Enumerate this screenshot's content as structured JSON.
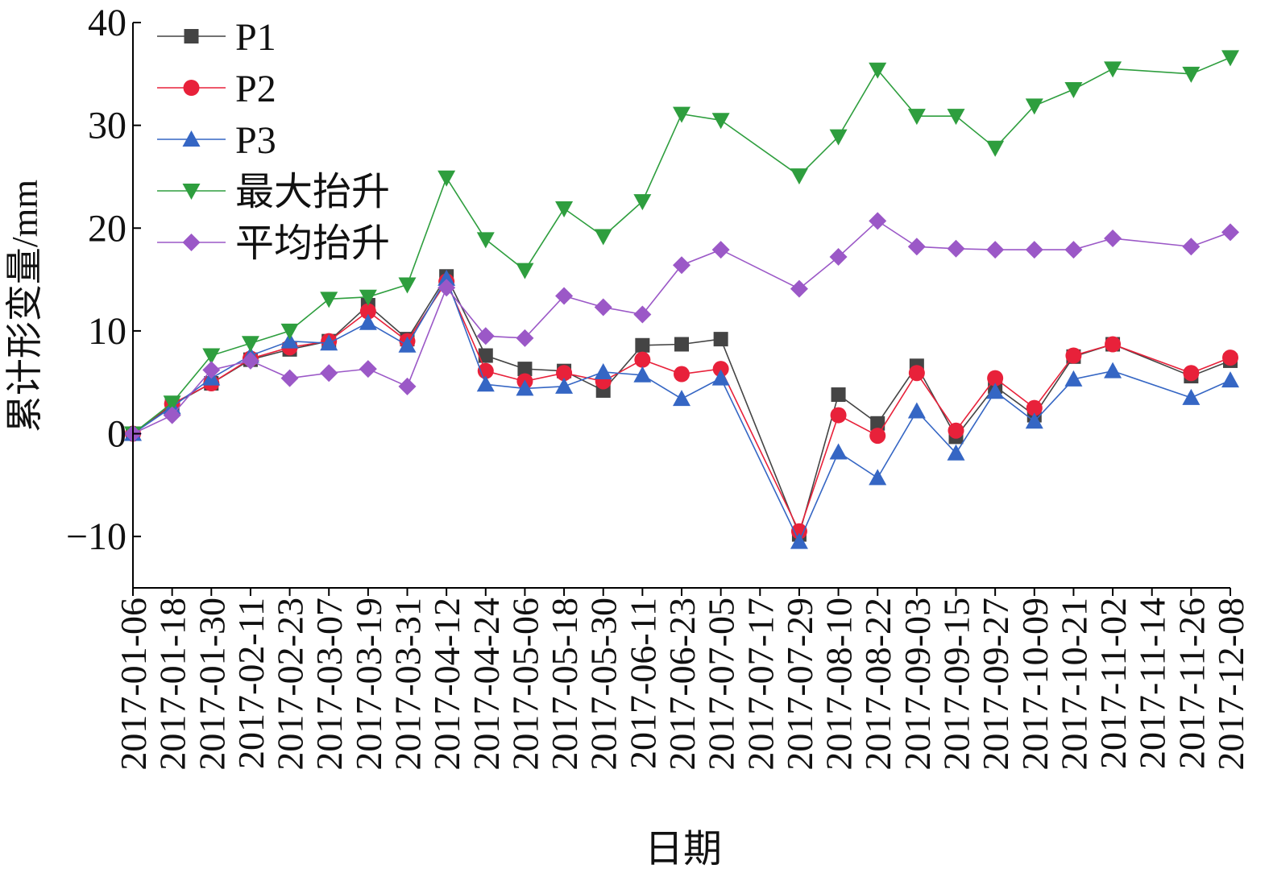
{
  "chart_data": {
    "type": "line",
    "xlabel": "日期",
    "ylabel": "累计形变量/mm",
    "ylim": [
      -15,
      40
    ],
    "yticks": [
      -10,
      0,
      10,
      20,
      30,
      40
    ],
    "ytick_labels": [
      "−10",
      "0",
      "10",
      "20",
      "30",
      "40"
    ],
    "x": [
      "2017-01-06",
      "2017-01-18",
      "2017-01-30",
      "2017-02-11",
      "2017-02-23",
      "2017-03-07",
      "2017-03-19",
      "2017-03-31",
      "2017-04-12",
      "2017-04-24",
      "2017-05-06",
      "2017-05-18",
      "2017-05-30",
      "2017-06-11",
      "2017-06-23",
      "2017-07-05",
      "2017-07-17",
      "2017-07-29",
      "2017-08-10",
      "2017-08-22",
      "2017-09-03",
      "2017-09-15",
      "2017-09-27",
      "2017-10-09",
      "2017-10-21",
      "2017-11-02",
      "2017-11-14",
      "2017-11-26",
      "2017-12-08"
    ],
    "legend_position": "top-left",
    "series": [
      {
        "name": "P1",
        "color": "#444444",
        "marker": "square",
        "values": [
          0,
          2.8,
          4.9,
          7.2,
          8.2,
          9.0,
          12.5,
          9.2,
          15.3,
          7.6,
          6.3,
          6.1,
          4.2,
          8.6,
          8.7,
          9.2,
          null,
          -9.8,
          3.8,
          1.0,
          6.6,
          -0.3,
          4.6,
          1.8,
          7.5,
          8.7,
          null,
          5.6,
          7.1
        ]
      },
      {
        "name": "P2",
        "color": "#e8213a",
        "marker": "circle",
        "values": [
          0,
          2.9,
          4.9,
          7.3,
          8.4,
          9.0,
          11.9,
          9.0,
          14.8,
          6.1,
          5.1,
          5.9,
          5.1,
          7.2,
          5.8,
          6.3,
          null,
          -9.5,
          1.8,
          -0.2,
          5.9,
          0.3,
          5.4,
          2.5,
          7.6,
          8.7,
          null,
          5.9,
          7.4
        ]
      },
      {
        "name": "P3",
        "color": "#3566c4",
        "marker": "triangle-up",
        "values": [
          0,
          2.6,
          5.4,
          7.6,
          9.0,
          8.8,
          10.8,
          8.6,
          15.1,
          4.8,
          4.4,
          4.6,
          6.0,
          5.7,
          3.4,
          5.4,
          null,
          -10.5,
          -1.8,
          -4.3,
          2.2,
          -1.9,
          4.1,
          1.2,
          5.3,
          6.1,
          null,
          3.5,
          5.2
        ]
      },
      {
        "name": "最大抬升",
        "color": "#2e9e3e",
        "marker": "triangle-down",
        "values": [
          0,
          3.0,
          7.6,
          8.8,
          10.0,
          13.1,
          13.3,
          14.5,
          24.9,
          18.9,
          15.9,
          21.9,
          19.2,
          22.6,
          31.1,
          30.5,
          null,
          25.1,
          28.9,
          35.4,
          30.9,
          30.9,
          27.8,
          31.9,
          33.5,
          35.5,
          null,
          35.0,
          36.6
        ]
      },
      {
        "name": "平均抬升",
        "color": "#9b58c7",
        "marker": "diamond",
        "values": [
          0,
          1.8,
          6.2,
          7.1,
          5.4,
          5.9,
          6.3,
          4.6,
          14.2,
          9.5,
          9.3,
          13.4,
          12.3,
          11.6,
          16.4,
          17.9,
          null,
          14.1,
          17.2,
          20.7,
          18.2,
          18.0,
          17.9,
          17.9,
          17.9,
          19.0,
          null,
          18.2,
          19.6
        ]
      }
    ]
  }
}
